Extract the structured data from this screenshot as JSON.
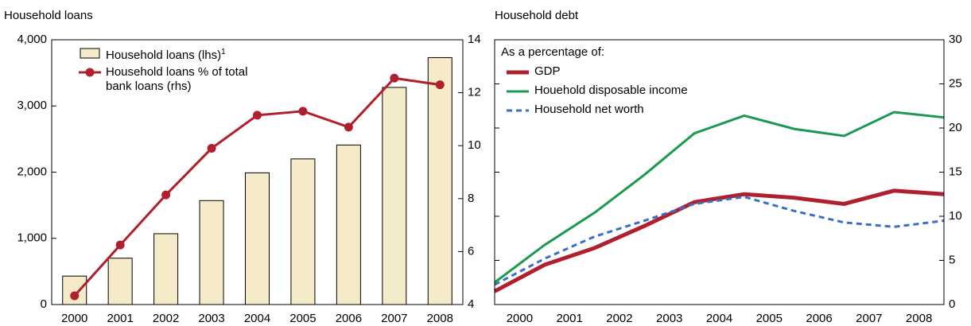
{
  "chart_data": [
    {
      "type": "bar",
      "title": "Household loans",
      "categories": [
        "2000",
        "2001",
        "2002",
        "2003",
        "2004",
        "2005",
        "2006",
        "2007",
        "2008"
      ],
      "series": [
        {
          "name": "Household loans (lhs)",
          "footnote_marker": "1",
          "type": "bar",
          "color": "#f5ebc8",
          "values": [
            430,
            700,
            1070,
            1570,
            1990,
            2200,
            2410,
            3280,
            3730
          ]
        },
        {
          "name": "Household loans % of total bank loans (rhs)",
          "type": "line",
          "axis": "y2",
          "color": "#b01f2e",
          "values": [
            4.33,
            6.25,
            8.14,
            9.9,
            11.15,
            11.3,
            10.7,
            12.55,
            12.3
          ]
        }
      ],
      "ylim": [
        0,
        4000
      ],
      "yticks": [
        0,
        {
          "value": 1000,
          "label": "1,000"
        },
        {
          "value": 2000,
          "label": "2,000"
        },
        {
          "value": 3000,
          "label": "3,000"
        },
        {
          "value": 4000,
          "label": "4,000"
        }
      ],
      "y2lim": [
        4,
        14
      ],
      "y2ticks": [
        4,
        6,
        8,
        10,
        12,
        14
      ]
    },
    {
      "type": "line",
      "title": "Household debt",
      "legend_title": "As a percentage of:",
      "x": [
        2000,
        2001,
        2002,
        2003,
        2004,
        2005,
        2006,
        2007,
        2008,
        2009
      ],
      "xlim": [
        2000,
        2009
      ],
      "xticks": [
        {
          "value": 2000.5,
          "label": "2000"
        },
        {
          "value": 2001.5,
          "label": "2001"
        },
        {
          "value": 2002.5,
          "label": "2002"
        },
        {
          "value": 2003.5,
          "label": "2003"
        },
        {
          "value": 2004.5,
          "label": "2004"
        },
        {
          "value": 2005.5,
          "label": "2005"
        },
        {
          "value": 2006.5,
          "label": "2006"
        },
        {
          "value": 2007.5,
          "label": "2007"
        },
        {
          "value": 2008.5,
          "label": "2008"
        }
      ],
      "series": [
        {
          "name": "GDP",
          "color": "#b01f2e",
          "linewidth": 5,
          "dashed": false,
          "axis": "y2",
          "values": [
            1.5,
            4.5,
            6.4,
            8.9,
            11.6,
            12.5,
            12.1,
            11.4,
            12.9,
            12.5
          ]
        },
        {
          "name": "Houehold disposable income",
          "color": "#1a9a50",
          "linewidth": 3,
          "dashed": false,
          "axis": "y2",
          "values": [
            2.5,
            6.75,
            10.4,
            14.7,
            19.4,
            21.4,
            19.9,
            19.1,
            21.8,
            21.2
          ]
        },
        {
          "name": "Household net worth",
          "color": "#3a6fc4",
          "linewidth": 3,
          "dashed": true,
          "axis": "y2",
          "values": [
            2.25,
            5.2,
            7.7,
            9.5,
            11.4,
            12.2,
            10.6,
            9.3,
            8.8,
            9.5
          ]
        }
      ],
      "y2lim": [
        0,
        30
      ],
      "y2ticks": [
        0,
        5,
        10,
        15,
        20,
        25,
        30
      ]
    }
  ]
}
